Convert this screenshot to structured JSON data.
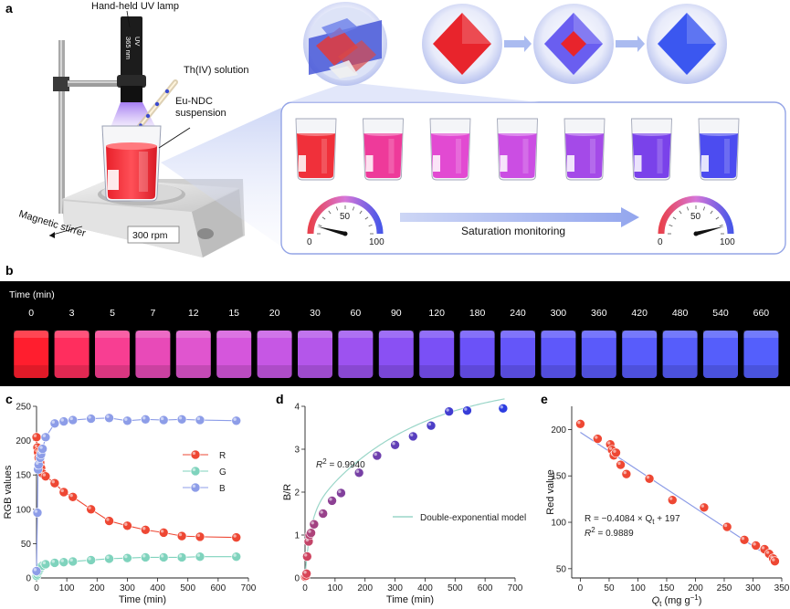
{
  "panels": {
    "a": "a",
    "b": "b",
    "c": "c",
    "d": "d",
    "e": "e"
  },
  "setup": {
    "lamp_label": "Hand-held UV lamp",
    "lamp_wavelength": "365 nm",
    "lamp_text": "UV",
    "solution_label": "Th(IV) solution",
    "suspension_label": "Eu-NDC\nsuspension",
    "stirrer_label": "Magnetic stirrer",
    "rpm_label": "300 rpm"
  },
  "monitor": {
    "gauge_left": {
      "min": "0",
      "mid": "50",
      "max": "100",
      "value": 8
    },
    "gauge_right": {
      "min": "0",
      "mid": "50",
      "max": "100",
      "value": 92
    },
    "arrow_label": "Saturation monitoring",
    "beaker_colors": [
      "#f0303a",
      "#ee3a9a",
      "#e24ad2",
      "#cb4ee3",
      "#a44ae8",
      "#7a42ea",
      "#4c4cf0"
    ],
    "crystal_colors": [
      "#e8242c",
      "#6a5ef0",
      "#3b57f0"
    ]
  },
  "panel_b": {
    "time_title": "Time (min)",
    "times": [
      "0",
      "3",
      "5",
      "7",
      "12",
      "15",
      "20",
      "30",
      "60",
      "90",
      "120",
      "180",
      "240",
      "300",
      "360",
      "420",
      "480",
      "540",
      "660"
    ],
    "colors": [
      "#ff1e2e",
      "#ff2e5e",
      "#f83e92",
      "#e84ab8",
      "#e055cf",
      "#d556dc",
      "#c657e4",
      "#b456ea",
      "#9d52f0",
      "#8a50f3",
      "#7a50f6",
      "#6b52f8",
      "#6456f9",
      "#5e58fa",
      "#5a5afa",
      "#585cfb",
      "#565dfb",
      "#555efb",
      "#545ffc"
    ]
  },
  "chart_data": [
    {
      "type": "scatter",
      "panel": "c",
      "title": "",
      "xlabel": "Time (min)",
      "ylabel": "RGB values",
      "xlim": [
        0,
        700
      ],
      "ylim": [
        0,
        250
      ],
      "xticks": [
        0,
        100,
        200,
        300,
        400,
        500,
        600,
        700
      ],
      "yticks": [
        0,
        50,
        100,
        150,
        200,
        250
      ],
      "x": [
        0,
        3,
        5,
        7,
        12,
        15,
        20,
        30,
        60,
        90,
        120,
        180,
        240,
        300,
        360,
        420,
        480,
        540,
        660
      ],
      "series": [
        {
          "name": "R",
          "color": "#ee4733",
          "values": [
            205,
            190,
            183,
            175,
            168,
            160,
            152,
            148,
            138,
            125,
            118,
            100,
            83,
            76,
            70,
            66,
            61,
            60,
            59
          ]
        },
        {
          "name": "G",
          "color": "#7fd3bd",
          "values": [
            3,
            5,
            8,
            10,
            14,
            17,
            18,
            20,
            22,
            23,
            24,
            26,
            28,
            29,
            30,
            30,
            30,
            31,
            31
          ]
        },
        {
          "name": "B",
          "color": "#8d9de8",
          "values": [
            10,
            95,
            158,
            165,
            175,
            180,
            188,
            205,
            225,
            228,
            230,
            232,
            233,
            229,
            231,
            230,
            231,
            230,
            229
          ]
        }
      ],
      "legend": "right",
      "legend_entries": [
        "R",
        "G",
        "B"
      ]
    },
    {
      "type": "scatter",
      "panel": "d",
      "title": "",
      "xlabel": "Time (min)",
      "ylabel": "B/R",
      "xlim": [
        0,
        700
      ],
      "ylim": [
        0,
        4
      ],
      "xticks": [
        0,
        100,
        200,
        300,
        400,
        500,
        600,
        700
      ],
      "yticks": [
        0,
        1,
        2,
        3,
        4
      ],
      "x": [
        0,
        3,
        5,
        7,
        12,
        15,
        20,
        30,
        60,
        90,
        120,
        180,
        240,
        300,
        360,
        420,
        480,
        540,
        660
      ],
      "values": [
        0.03,
        0.05,
        0.1,
        0.5,
        0.85,
        1.0,
        1.05,
        1.25,
        1.5,
        1.8,
        1.98,
        2.45,
        2.85,
        3.1,
        3.3,
        3.55,
        3.88,
        3.9,
        3.95
      ],
      "fit_label": "Double-exponential model",
      "annotation_r2": "= 0.9940",
      "annotation_r2_symbol": "R",
      "annotation_r2_sup": "2",
      "legend": "center-right"
    },
    {
      "type": "scatter",
      "panel": "e",
      "title": "",
      "xlabel": "Q",
      "xlabel_sub": "t",
      "xlabel_units": " (mg g",
      "xlabel_sup": "−1",
      "xlabel_end": ")",
      "ylabel": "Red value",
      "xlim": [
        -15,
        350
      ],
      "ylim": [
        40,
        225
      ],
      "xticks": [
        0,
        50,
        100,
        150,
        200,
        250,
        300,
        350
      ],
      "yticks": [
        50,
        100,
        150,
        200
      ],
      "x": [
        0,
        30,
        52,
        55,
        58,
        62,
        70,
        80,
        120,
        160,
        215,
        255,
        285,
        305,
        320,
        328,
        335,
        338
      ],
      "values": [
        206,
        190,
        184,
        178,
        172,
        175,
        162,
        152,
        147,
        124,
        116,
        95,
        81,
        75,
        71,
        66,
        61,
        58
      ],
      "fit": {
        "slope": -0.4084,
        "intercept": 197
      },
      "annotation_eq": "R = −0.4084 × Q",
      "annotation_eq_sub": "t",
      "annotation_eq_end": " + 197",
      "annotation_r2_symbol": "R",
      "annotation_r2_sup": "2",
      "annotation_r2": " = 0.9889"
    }
  ]
}
